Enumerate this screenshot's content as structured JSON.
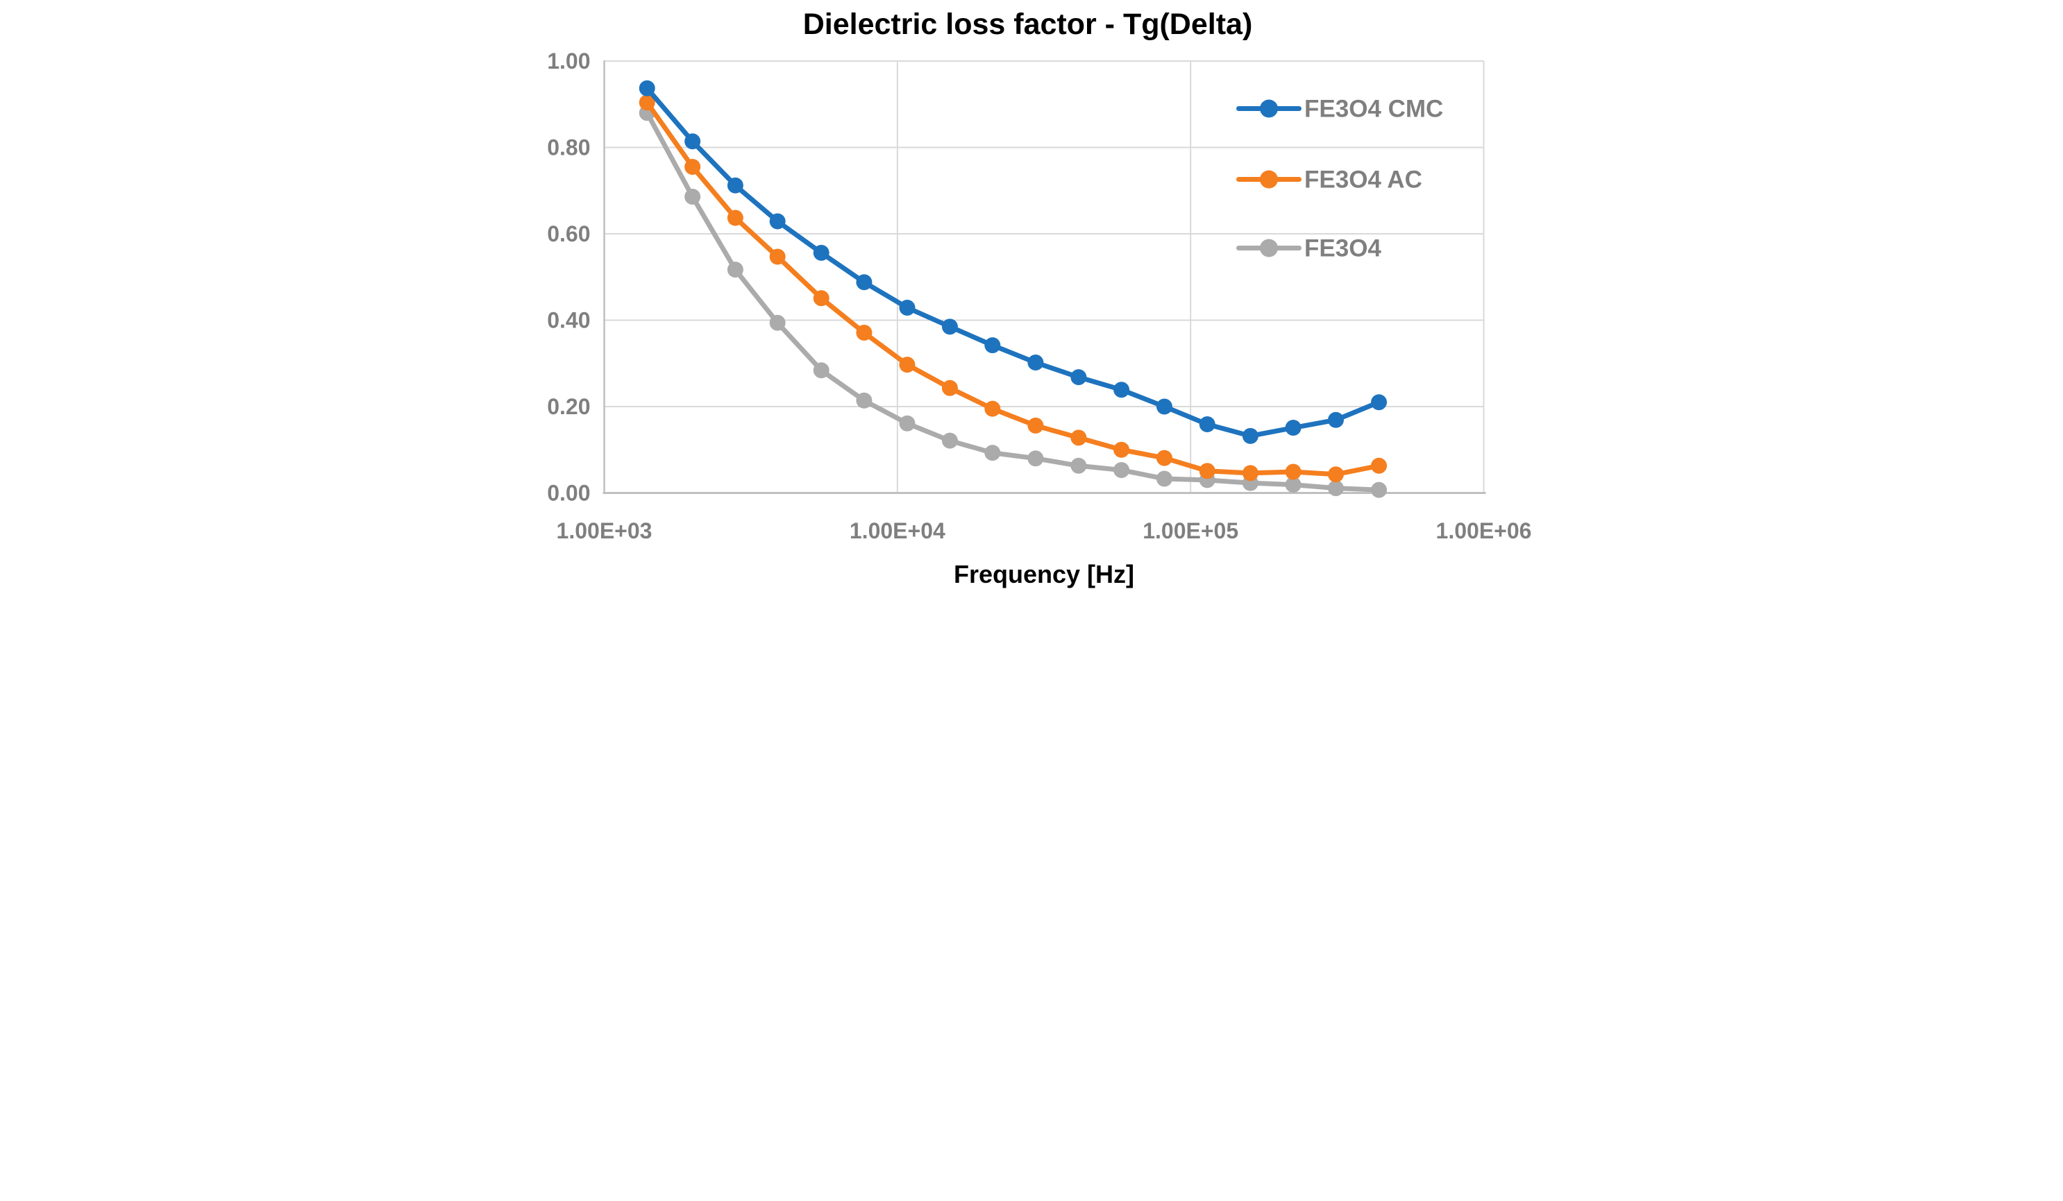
{
  "title": "Dielectric loss factor - Tg(Delta)",
  "colors": {
    "series_blue": "#1E73BE",
    "series_orange": "#F57E1E",
    "series_gray": "#ABABAB",
    "text_gray": "#7F7F7F",
    "gridline": "#D9D9D9",
    "axis_line": "#BFBFBF",
    "background": "#FFFFFF"
  },
  "x_axis": {
    "label": "Frequency [Hz]",
    "scale": "log",
    "min": 1000,
    "max": 1000000,
    "tick_labels": [
      "1.00E+03",
      "1.00E+04",
      "1.00E+05",
      "1.00E+06"
    ],
    "tick_values": [
      1000,
      10000,
      100000,
      1000000
    ]
  },
  "y_axis": {
    "label": "",
    "min": 0,
    "max": 1,
    "tick_labels": [
      "1.00",
      "0.80",
      "0.60",
      "0.40",
      "0.20",
      "0.00"
    ],
    "tick_values": [
      1.0,
      0.8,
      0.6,
      0.4,
      0.2,
      0.0
    ]
  },
  "legend": {
    "position": "right-inside",
    "entries": [
      "FE3O4 CMC",
      "FE3O4 AC",
      "FE3O4"
    ]
  },
  "chart_data": {
    "type": "line",
    "title": "Dielectric loss factor - Tg(Delta)",
    "xlabel": "Frequency [Hz]",
    "ylabel": "",
    "xscale": "log",
    "xlim": [
      1000,
      1000000
    ],
    "ylim": [
      0.0,
      1.0
    ],
    "grid": true,
    "legend_position": "right-inside",
    "x": [
      1400,
      2000,
      2800,
      3900,
      5500,
      7700,
      10800,
      15100,
      21100,
      29600,
      41500,
      58100,
      81400,
      114000,
      160000,
      224000,
      313000,
      439000
    ],
    "series": [
      {
        "name": "FE3O4 CMC",
        "color": "#1E73BE",
        "values": [
          0.937,
          0.814,
          0.712,
          0.629,
          0.556,
          0.488,
          0.429,
          0.385,
          0.342,
          0.302,
          0.268,
          0.239,
          0.2,
          0.159,
          0.132,
          0.151,
          0.169,
          0.21
        ]
      },
      {
        "name": "FE3O4 AC",
        "color": "#F57E1E",
        "values": [
          0.904,
          0.755,
          0.637,
          0.547,
          0.451,
          0.371,
          0.297,
          0.243,
          0.195,
          0.156,
          0.128,
          0.1,
          0.081,
          0.051,
          0.046,
          0.049,
          0.043,
          0.063
        ]
      },
      {
        "name": "FE3O4",
        "color": "#ABABAB",
        "values": [
          0.88,
          0.686,
          0.517,
          0.394,
          0.284,
          0.214,
          0.161,
          0.121,
          0.093,
          0.08,
          0.063,
          0.053,
          0.033,
          0.03,
          0.023,
          0.019,
          0.011,
          0.007
        ]
      }
    ]
  }
}
